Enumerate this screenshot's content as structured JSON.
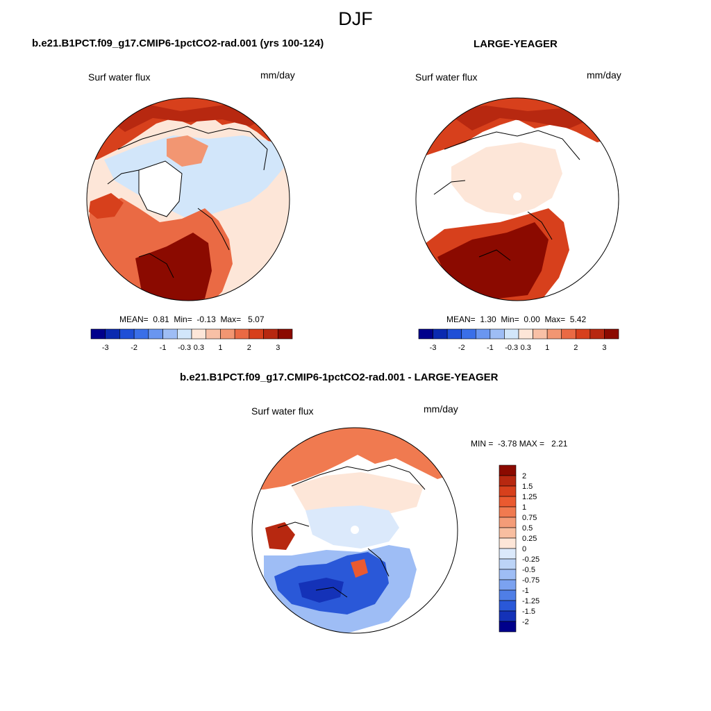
{
  "season_title": "DJF",
  "chart_data": [
    {
      "type": "heatmap",
      "projection": "north-polar-stereographic",
      "title": "b.e21.B1PCT.f09_g17.CMIP6-1pctCO2-rad.001 (yrs 100-124)",
      "variable_label": "Surf water flux",
      "units": "mm/day",
      "stats": {
        "mean_label": "MEAN=",
        "mean": "0.81",
        "min_label": "Min=",
        "min": "-0.13",
        "max_label": "Max=",
        "max": "5.07"
      },
      "colorbar": {
        "orientation": "horizontal",
        "colors": [
          "#00008b",
          "#0a2ab0",
          "#1f4fd6",
          "#3a6fe8",
          "#6a96f0",
          "#9ebdf5",
          "#d2e6fa",
          "#fde6d8",
          "#f8c0a6",
          "#f29672",
          "#ea6a44",
          "#d7401c",
          "#b72810",
          "#8b0a00"
        ],
        "levels": [
          -3,
          -2.5,
          -2,
          -1.5,
          -1,
          -0.5,
          -0.3,
          0.3,
          0.5,
          1,
          1.5,
          2,
          2.5,
          3
        ],
        "tick_labels": [
          "-3",
          "-2",
          "-1",
          "-0.3",
          "0.3",
          "1",
          "2",
          "3"
        ]
      }
    },
    {
      "type": "heatmap",
      "projection": "north-polar-stereographic",
      "title": "LARGE-YEAGER",
      "variable_label": "Surf water flux",
      "units": "mm/day",
      "stats": {
        "mean_label": "MEAN=",
        "mean": "1.30",
        "min_label": "Min=",
        "min": "0.00",
        "max_label": "Max=",
        "max": "5.42"
      },
      "colorbar": {
        "orientation": "horizontal",
        "colors": [
          "#00008b",
          "#0a2ab0",
          "#1f4fd6",
          "#3a6fe8",
          "#6a96f0",
          "#9ebdf5",
          "#d2e6fa",
          "#fde6d8",
          "#f8c0a6",
          "#f29672",
          "#ea6a44",
          "#d7401c",
          "#b72810",
          "#8b0a00"
        ],
        "levels": [
          -3,
          -2.5,
          -2,
          -1.5,
          -1,
          -0.5,
          -0.3,
          0.3,
          0.5,
          1,
          1.5,
          2,
          2.5,
          3
        ],
        "tick_labels": [
          "-3",
          "-2",
          "-1",
          "-0.3",
          "0.3",
          "1",
          "2",
          "3"
        ]
      }
    },
    {
      "type": "heatmap",
      "projection": "north-polar-stereographic",
      "title": "b.e21.B1PCT.f09_g17.CMIP6-1pctCO2-rad.001 - LARGE-YEAGER",
      "variable_label": "Surf water flux",
      "units": "mm/day",
      "stats": {
        "min_label": "MIN =",
        "min": "-3.78",
        "max_label": "MAX =",
        "max": "2.21"
      },
      "colorbar": {
        "orientation": "vertical",
        "colors": [
          "#8b0a00",
          "#b72810",
          "#d7401c",
          "#ea5a30",
          "#f07a50",
          "#f49c78",
          "#f8bea0",
          "#fde6d8",
          "#dbe9fb",
          "#bcd4f7",
          "#9ebdf5",
          "#7ba2f0",
          "#4f7ee6",
          "#2a58d8",
          "#1432b8",
          "#00008b"
        ],
        "tick_labels": [
          "2",
          "1.5",
          "1.25",
          "1",
          "0.75",
          "0.5",
          "0.25",
          "0",
          "-0.25",
          "-0.5",
          "-0.75",
          "-1",
          "-1.25",
          "-1.5",
          "-2"
        ]
      }
    }
  ]
}
